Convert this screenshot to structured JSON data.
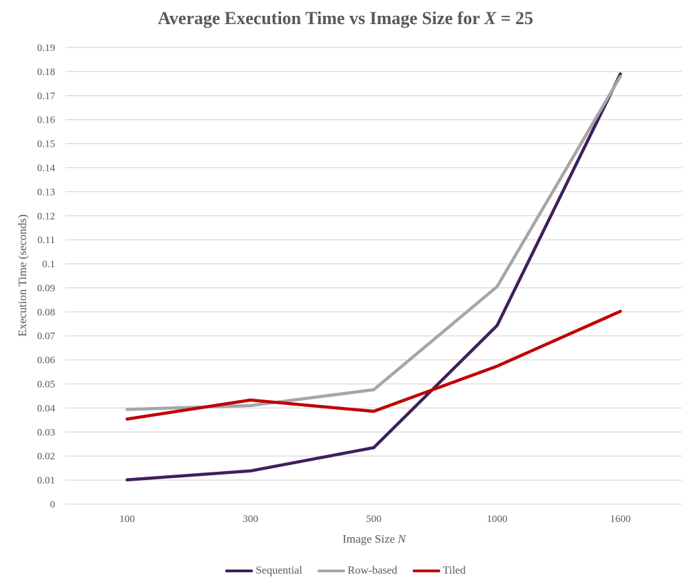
{
  "chart_data": {
    "type": "line",
    "title_prefix": "Average Execution Time vs Image Size for ",
    "title_var": "X",
    "title_suffix": " = 25",
    "xlabel_prefix": "Image Size ",
    "xlabel_var": "N",
    "ylabel": "Execution Time (seconds)",
    "categories": [
      "100",
      "300",
      "500",
      "1000",
      "1600"
    ],
    "ylim": [
      0,
      0.19
    ],
    "yticks": [
      "0",
      "0.01",
      "0.02",
      "0.03",
      "0.04",
      "0.05",
      "0.06",
      "0.07",
      "0.08",
      "0.09",
      "0.1",
      "0.11",
      "0.12",
      "0.13",
      "0.14",
      "0.15",
      "0.16",
      "0.17",
      "0.18",
      "0.19"
    ],
    "grid": true,
    "legend_position": "bottom",
    "series": [
      {
        "name": "Sequential",
        "color": "#3f1f5c",
        "values": [
          0.0101,
          0.0138,
          0.0235,
          0.0743,
          0.179
        ]
      },
      {
        "name": "Row-based",
        "color": "#a6a6a6",
        "values": [
          0.0394,
          0.041,
          0.0476,
          0.0905,
          0.178
        ]
      },
      {
        "name": "Tiled",
        "color": "#c00000",
        "values": [
          0.0354,
          0.0433,
          0.0386,
          0.0574,
          0.0802
        ]
      }
    ]
  }
}
